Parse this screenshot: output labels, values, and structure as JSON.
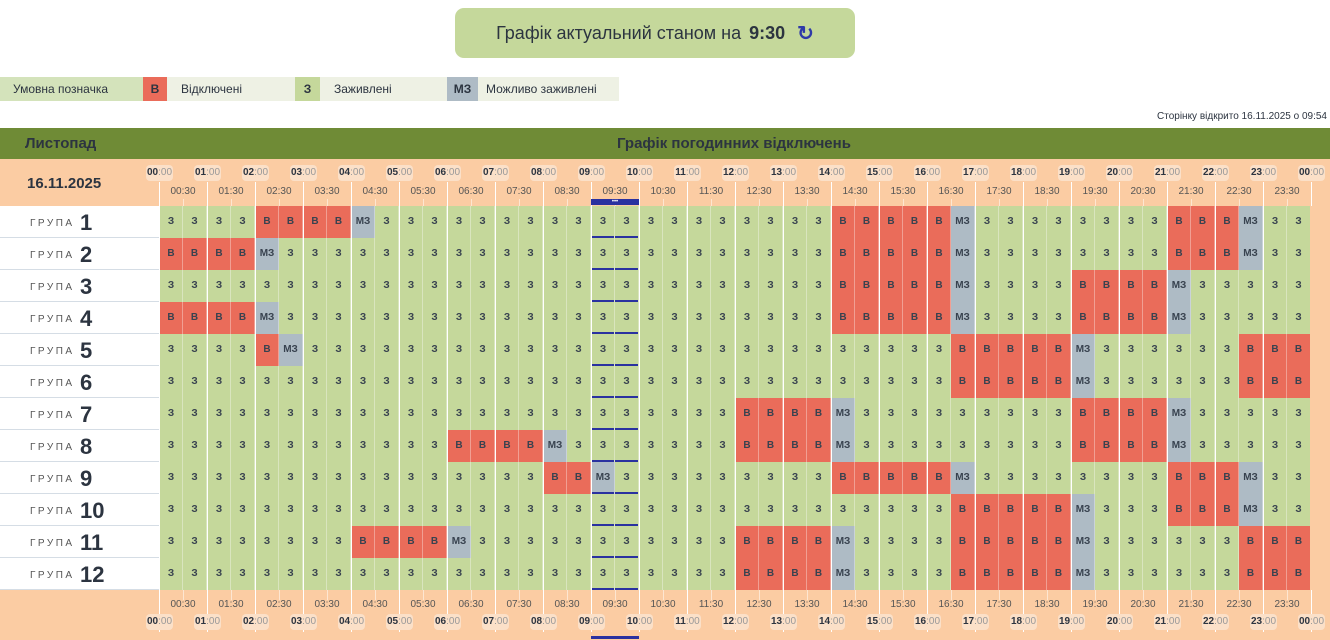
{
  "status": {
    "label": "Графік актуальний станом на",
    "time": "9:30",
    "refresh_icon": "refresh-icon"
  },
  "legend": {
    "title": "Умовна позначка",
    "items": [
      {
        "code": "v",
        "short": "В",
        "label": "Відключені",
        "color": "#ea6c5a"
      },
      {
        "code": "z",
        "short": "З",
        "label": "Заживлені",
        "color": "#c5d89b"
      },
      {
        "code": "m",
        "short": "МЗ",
        "label": "Можливо заживлені",
        "color": "#aebbc5"
      }
    ]
  },
  "opened": "Сторінку відкрито 16.11.2025 о 09:54",
  "table": {
    "month": "Листопад",
    "caption": "Графік погодинних відключень",
    "date": "16.11.2025",
    "group_word": "ГРУПА",
    "hours": [
      "00",
      "01",
      "02",
      "03",
      "04",
      "05",
      "06",
      "07",
      "08",
      "09",
      "10",
      "11",
      "12",
      "13",
      "14",
      "15",
      "16",
      "17",
      "18",
      "19",
      "20",
      "21",
      "22",
      "23",
      "00"
    ],
    "minutes": ":00",
    "halves": [
      "00:30",
      "01:30",
      "02:30",
      "03:30",
      "04:30",
      "05:30",
      "06:30",
      "07:30",
      "08:30",
      "09:30",
      "10:30",
      "11:30",
      "12:30",
      "13:30",
      "14:30",
      "15:30",
      "16:30",
      "17:30",
      "18:30",
      "19:30",
      "20:30",
      "21:30",
      "22:30",
      "23:30"
    ],
    "current_slot": "09:30",
    "current_marker": "•••",
    "groups": [
      {
        "n": "1",
        "s": "zzzzvvvvmzzzzzzzzzzzzzzzzzzzvvvvvmzzzzzzzzvvvmzz"
      },
      {
        "n": "2",
        "s": "vvvvmzzzzzzzzzzzzzzzzzzzzzzzvvvvvmzzzzzzzzvvvmzz"
      },
      {
        "n": "3",
        "s": "zzzzzzzzzzzzzzzzzzzzzzzzzzzzvvvvvmzzzzvvvvmzzzzz"
      },
      {
        "n": "4",
        "s": "vvvvmzzzzzzzzzzzzzzzzzzzzzzzvvvvvmzzzzvvvvmzzzzz"
      },
      {
        "n": "5",
        "s": "zzzzvmzzzzzzzzzzzzzzzzzzzzzzzzzzzvvvvvmzzzzzzvvv"
      },
      {
        "n": "6",
        "s": "zzzzzzzzzzzzzzzzzzzzzzzzzzzzzzzzzvvvvvmzzzzzzvvv"
      },
      {
        "n": "7",
        "s": "zzzzzzzzzzzzzzzzzzzzzzzzvvvvmzzzzzzzzzvvvvmzzzzz"
      },
      {
        "n": "8",
        "s": "zzzzzzzzzzzzvvvvmzzzzzzzvvvvmzzzzzzzzzvvvvmzzzzz"
      },
      {
        "n": "9",
        "s": "zzzzzzzzzzzzzzzzvvmzzzzzzzzzvvvvvmzzzzzzzzvvvmzz"
      },
      {
        "n": "10",
        "s": "zzzzzzzzzzzzzzzzzzzzzzzzzzzzzzzzzvvvvvmzzzvvvmzz"
      },
      {
        "n": "11",
        "s": "zzzzzzzzvvvvmzzzzzzzzzzzvvvvmzzzzvvvvvmzzzzzzvvv"
      },
      {
        "n": "12",
        "s": "zzzzzzzzzzzzzzzzzzzzzzzzvvvvmzzzzvvvvvmzzzzzzvvv"
      }
    ]
  }
}
